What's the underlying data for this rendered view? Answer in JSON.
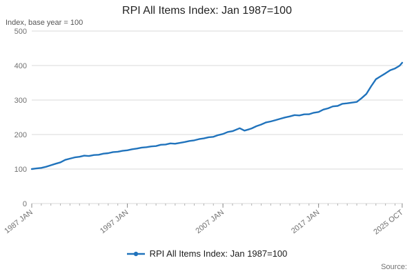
{
  "chart": {
    "title": "RPI All Items Index: Jan 1987=100",
    "y_axis_note": "Index, base year = 100",
    "legend_label": "RPI All Items Index: Jan 1987=100",
    "source": "Source:"
  },
  "chart_data": {
    "type": "line",
    "title": "RPI All Items Index: Jan 1987=100",
    "xlabel": "",
    "ylabel": "Index, base year = 100",
    "xlim": [
      1987,
      2025.83
    ],
    "ylim": [
      0,
      500
    ],
    "yticks": [
      0,
      100,
      200,
      300,
      400,
      500
    ],
    "xticks": [
      {
        "x": 1987,
        "label": "1987 JAN"
      },
      {
        "x": 1997,
        "label": "1997 JAN"
      },
      {
        "x": 2007,
        "label": "2007 JAN"
      },
      {
        "x": 2017,
        "label": "2017 JAN"
      },
      {
        "x": 2025.75,
        "label": "2025 OCT"
      }
    ],
    "grid": true,
    "legend_position": "bottom",
    "line_color": "#2073BC",
    "grid_color": "#d9d9d9",
    "series": [
      {
        "name": "RPI All Items Index: Jan 1987=100",
        "points": [
          [
            1987,
            100.0
          ],
          [
            1987.5,
            101.9
          ],
          [
            1988,
            103.3
          ],
          [
            1988.5,
            106.6
          ],
          [
            1989,
            111.0
          ],
          [
            1989.5,
            115.4
          ],
          [
            1990,
            119.5
          ],
          [
            1990.5,
            126.7
          ],
          [
            1991,
            130.2
          ],
          [
            1991.5,
            133.8
          ],
          [
            1992,
            135.6
          ],
          [
            1992.5,
            138.8
          ],
          [
            1993,
            137.9
          ],
          [
            1993.5,
            140.7
          ],
          [
            1994,
            141.3
          ],
          [
            1994.5,
            144.7
          ],
          [
            1995,
            146.0
          ],
          [
            1995.5,
            149.1
          ],
          [
            1996,
            150.2
          ],
          [
            1996.5,
            152.9
          ],
          [
            1997,
            154.4
          ],
          [
            1997.5,
            157.5
          ],
          [
            1998,
            159.5
          ],
          [
            1998.5,
            162.2
          ],
          [
            1999,
            163.4
          ],
          [
            1999.5,
            165.6
          ],
          [
            2000,
            166.6
          ],
          [
            2000.5,
            170.5
          ],
          [
            2001,
            171.1
          ],
          [
            2001.5,
            174.4
          ],
          [
            2002,
            173.3
          ],
          [
            2002.5,
            175.9
          ],
          [
            2003,
            178.4
          ],
          [
            2003.5,
            181.3
          ],
          [
            2004,
            183.1
          ],
          [
            2004.5,
            186.8
          ],
          [
            2005,
            188.9
          ],
          [
            2005.5,
            192.2
          ],
          [
            2006,
            193.4
          ],
          [
            2006.5,
            198.5
          ],
          [
            2007,
            201.6
          ],
          [
            2007.5,
            207.3
          ],
          [
            2008,
            209.8
          ],
          [
            2008.75,
            218.4
          ],
          [
            2009.25,
            211.3
          ],
          [
            2009.75,
            215.3
          ],
          [
            2010,
            217.9
          ],
          [
            2010.5,
            224.1
          ],
          [
            2011,
            229.0
          ],
          [
            2011.5,
            235.2
          ],
          [
            2012,
            238.0
          ],
          [
            2012.5,
            241.8
          ],
          [
            2013,
            245.8
          ],
          [
            2013.5,
            249.7
          ],
          [
            2014,
            252.6
          ],
          [
            2014.5,
            256.3
          ],
          [
            2015,
            255.4
          ],
          [
            2015.5,
            258.6
          ],
          [
            2016,
            258.8
          ],
          [
            2016.5,
            263.1
          ],
          [
            2017,
            265.5
          ],
          [
            2017.5,
            272.3
          ],
          [
            2018,
            276.0
          ],
          [
            2018.5,
            281.7
          ],
          [
            2019,
            283.0
          ],
          [
            2019.5,
            289.1
          ],
          [
            2020,
            290.6
          ],
          [
            2020.5,
            292.7
          ],
          [
            2021,
            294.6
          ],
          [
            2021.5,
            305.5
          ],
          [
            2022,
            317.7
          ],
          [
            2022.5,
            340.0
          ],
          [
            2022.9,
            356.2
          ],
          [
            2023,
            360.3
          ],
          [
            2023.5,
            369.0
          ],
          [
            2024,
            377.3
          ],
          [
            2024.5,
            386.4
          ],
          [
            2025,
            391.7
          ],
          [
            2025.33,
            397.0
          ],
          [
            2025.5,
            400.0
          ],
          [
            2025.75,
            408.2
          ]
        ]
      }
    ]
  }
}
